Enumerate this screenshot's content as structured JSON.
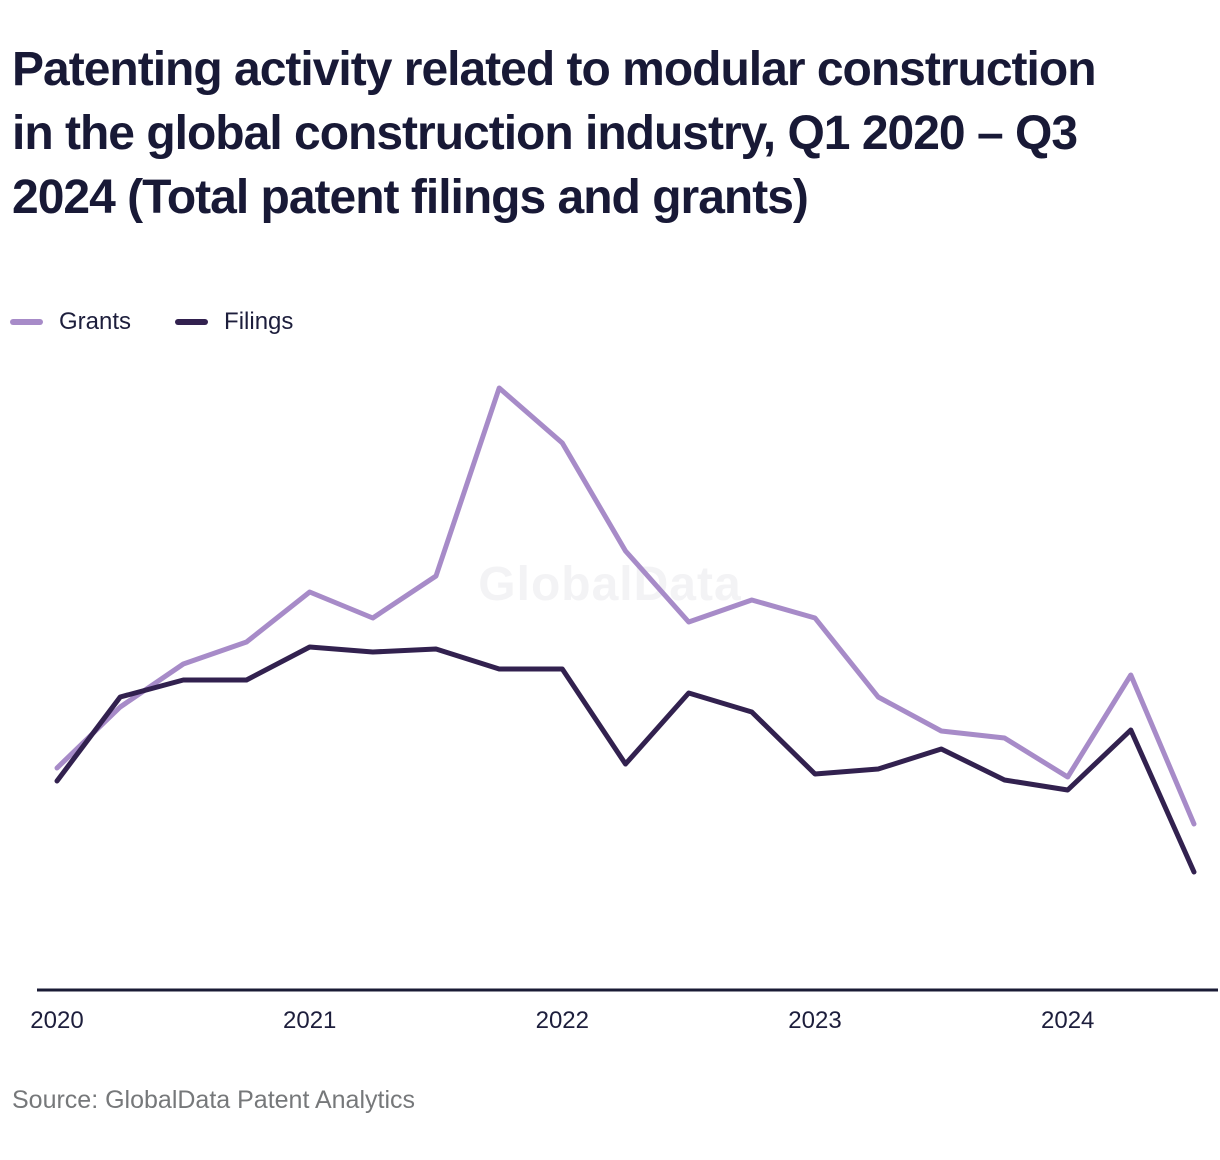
{
  "title": {
    "lines": [
      "Patenting activity related to modular construction",
      "in the global construction industry, Q1 2020 – Q3",
      "2024 (Total patent filings and grants)"
    ]
  },
  "watermark": "GlobalData",
  "source": "Source: GlobalData Patent Analytics",
  "colors": {
    "grants_line": "#a78bc8",
    "filings_line": "#32214f",
    "title_text": "#181936",
    "axis_line": "#1a1b35",
    "tick_text": "#1d1e3c",
    "source_text": "#76787a",
    "watermark_text": "#f3f3f5"
  },
  "chart_data": {
    "type": "line",
    "x": [
      "Q1 2020",
      "Q2 2020",
      "Q3 2020",
      "Q4 2020",
      "Q1 2021",
      "Q2 2021",
      "Q3 2021",
      "Q4 2021",
      "Q1 2022",
      "Q2 2022",
      "Q3 2022",
      "Q4 2022",
      "Q1 2023",
      "Q2 2023",
      "Q3 2023",
      "Q4 2023",
      "Q1 2024",
      "Q2 2024",
      "Q3 2024"
    ],
    "x_tick_labels": [
      "2020",
      "2021",
      "2022",
      "2023",
      "2024"
    ],
    "x_tick_positions": [
      0,
      4,
      8,
      12,
      16
    ],
    "series": [
      {
        "name": "Grants",
        "color": "#a78bc8",
        "values": [
          222,
          283,
          326,
          348,
          398,
          372,
          414,
          602,
          547,
          439,
          368,
          390,
          372,
          293,
          259,
          252,
          213,
          315,
          166
        ]
      },
      {
        "name": "Filings",
        "color": "#32214f",
        "values": [
          209,
          293,
          310,
          310,
          343,
          338,
          341,
          321,
          321,
          226,
          297,
          278,
          216,
          221,
          241,
          210,
          200,
          260,
          118
        ]
      }
    ],
    "ylim": [
      0,
      650
    ],
    "y_axis_visible": false,
    "y_axis_note": "no y-axis shown; values estimated in relative units from line positions",
    "grid": false,
    "legend_position": "top-left"
  }
}
